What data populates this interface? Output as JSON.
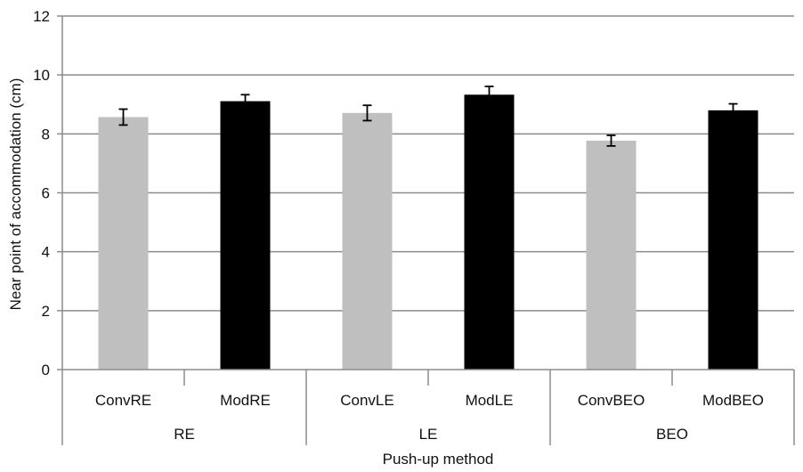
{
  "chart_data": {
    "type": "bar",
    "title": "",
    "xlabel": "Push-up method",
    "ylabel": "Near point of accommodation (cm)",
    "ylim": [
      0,
      12
    ],
    "yticks": [
      "0",
      "2",
      "4",
      "6",
      "8",
      "10",
      "12"
    ],
    "ytick_values": [
      0,
      2,
      4,
      6,
      8,
      10,
      12
    ],
    "grid": true,
    "legend": "none",
    "categories": [
      "ConvRE",
      "ModRE",
      "ConvLE",
      "ModLE",
      "ConvBEO",
      "ModBEO"
    ],
    "groups": [
      {
        "label": "RE",
        "categories": [
          "ConvRE",
          "ModRE"
        ]
      },
      {
        "label": "LE",
        "categories": [
          "ConvLE",
          "ModLE"
        ]
      },
      {
        "label": "BEO",
        "categories": [
          "ConvBEO",
          "ModBEO"
        ]
      }
    ],
    "values": [
      8.57,
      9.11,
      8.71,
      9.33,
      7.77,
      8.8
    ],
    "error": [
      0.27,
      0.22,
      0.26,
      0.28,
      0.18,
      0.22
    ],
    "bar_colors": [
      "#bfbfbf",
      "#000000",
      "#bfbfbf",
      "#000000",
      "#bfbfbf",
      "#000000"
    ],
    "colors": {
      "grid": "#8c8c8c",
      "axis": "#8c8c8c",
      "conv": "#bfbfbf",
      "mod": "#000000"
    }
  }
}
